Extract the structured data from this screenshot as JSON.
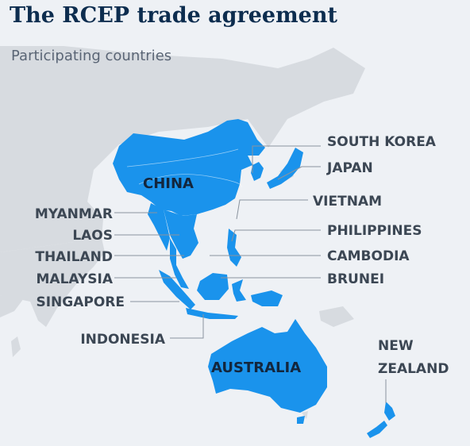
{
  "header": {
    "title": "The RCEP trade agreement",
    "subtitle": "Participating countries"
  },
  "countries": {
    "china": "CHINA",
    "south_korea": "SOUTH KOREA",
    "japan": "JAPAN",
    "vietnam": "VIETNAM",
    "myanmar": "MYANMAR",
    "philippines": "PHILIPPINES",
    "laos": "LAOS",
    "thailand": "THAILAND",
    "cambodia": "CAMBODIA",
    "malaysia": "MALAYSIA",
    "brunei": "BRUNEI",
    "singapore": "SINGAPORE",
    "indonesia": "INDONESIA",
    "australia": "AUSTRALIA",
    "new_zealand_line1": "NEW",
    "new_zealand_line2": "ZEALAND"
  },
  "colors": {
    "member": "#1a93ec",
    "non_member": "#d7dbe0",
    "sea": "#eef1f5",
    "title": "#0d2d4f"
  }
}
